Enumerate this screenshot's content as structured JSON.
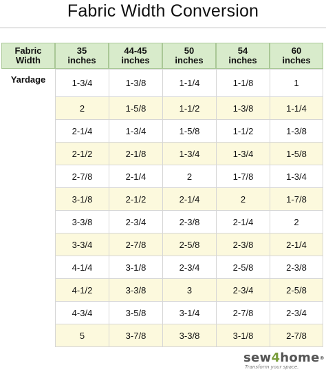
{
  "title": "Fabric Width Conversion",
  "header": {
    "label": "Fabric\nWidth",
    "widths": [
      "35\ninches",
      "44-45\ninches",
      "50\ninches",
      "54\ninches",
      "60\ninches"
    ]
  },
  "row_label": "Yardage",
  "rows": [
    [
      "1-3/4",
      "1-3/8",
      "1-1/4",
      "1-1/8",
      "1"
    ],
    [
      "2",
      "1-5/8",
      "1-1/2",
      "1-3/8",
      "1-1/4"
    ],
    [
      "2-1/4",
      "1-3/4",
      "1-5/8",
      "1-1/2",
      "1-3/8"
    ],
    [
      "2-1/2",
      "2-1/8",
      "1-3/4",
      "1-3/4",
      "1-5/8"
    ],
    [
      "2-7/8",
      "2-1/4",
      "2",
      "1-7/8",
      "1-3/4"
    ],
    [
      "3-1/8",
      "2-1/2",
      "2-1/4",
      "2",
      "1-7/8"
    ],
    [
      "3-3/8",
      "2-3/4",
      "2-3/8",
      "2-1/4",
      "2"
    ],
    [
      "3-3/4",
      "2-7/8",
      "2-5/8",
      "2-3/8",
      "2-1/4"
    ],
    [
      "4-1/4",
      "3-1/8",
      "2-3/4",
      "2-5/8",
      "2-3/8"
    ],
    [
      "4-1/2",
      "3-3/8",
      "3",
      "2-3/4",
      "2-5/8"
    ],
    [
      "4-3/4",
      "3-5/8",
      "3-1/4",
      "2-7/8",
      "2-3/4"
    ],
    [
      "5",
      "3-7/8",
      "3-3/8",
      "3-1/8",
      "2-7/8"
    ]
  ],
  "colors": {
    "header_bg": "#d8ebcb",
    "alt_row_bg": "#fcf9dd",
    "logo_accent": "#7a9d3c"
  },
  "logo": {
    "prefix": "sew",
    "accent": "4",
    "suffix": "home",
    "trademark": "®",
    "tagline": "Transform your space."
  }
}
